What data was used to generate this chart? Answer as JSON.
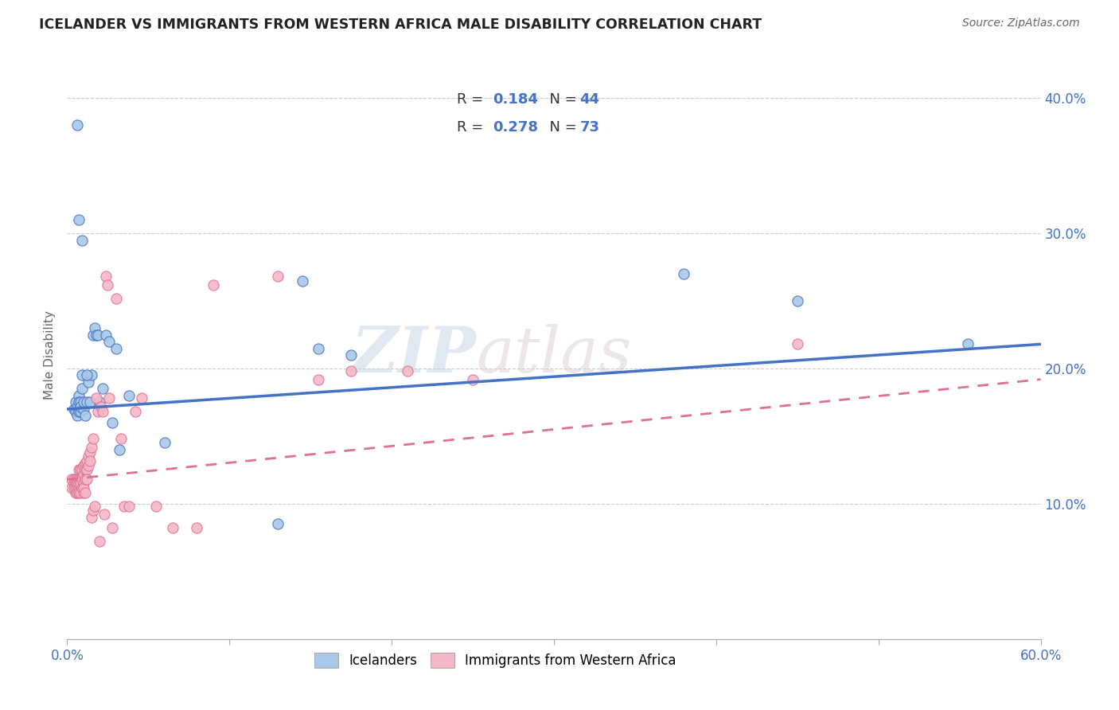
{
  "title": "ICELANDER VS IMMIGRANTS FROM WESTERN AFRICA MALE DISABILITY CORRELATION CHART",
  "source": "Source: ZipAtlas.com",
  "ylabel": "Male Disability",
  "xlim": [
    0.0,
    0.6
  ],
  "ylim": [
    0.0,
    0.42
  ],
  "legend_r1": "R = 0.184",
  "legend_n1": "N = 44",
  "legend_r2": "R = 0.278",
  "legend_n2": "N = 73",
  "color_blue": "#a8c8e8",
  "color_pink": "#f4b8c8",
  "color_blue_dark": "#4472c4",
  "color_pink_dark": "#e07090",
  "watermark_zip": "ZIP",
  "watermark_atlas": "atlas",
  "blue_line_start_y": 0.17,
  "blue_line_end_y": 0.218,
  "pink_line_start_y": 0.118,
  "pink_line_end_y": 0.192,
  "icelanders_x": [
    0.004,
    0.005,
    0.005,
    0.006,
    0.006,
    0.007,
    0.007,
    0.007,
    0.008,
    0.008,
    0.008,
    0.009,
    0.009,
    0.01,
    0.01,
    0.011,
    0.012,
    0.013,
    0.014,
    0.015,
    0.016,
    0.017,
    0.018,
    0.019,
    0.02,
    0.022,
    0.024,
    0.026,
    0.028,
    0.03,
    0.032,
    0.038,
    0.06,
    0.13,
    0.145,
    0.155,
    0.175,
    0.38,
    0.45,
    0.555,
    0.006,
    0.007,
    0.009,
    0.012
  ],
  "icelanders_y": [
    0.17,
    0.168,
    0.175,
    0.172,
    0.165,
    0.18,
    0.175,
    0.168,
    0.175,
    0.168,
    0.172,
    0.195,
    0.185,
    0.17,
    0.175,
    0.165,
    0.175,
    0.19,
    0.175,
    0.195,
    0.225,
    0.23,
    0.225,
    0.225,
    0.175,
    0.185,
    0.225,
    0.22,
    0.16,
    0.215,
    0.14,
    0.18,
    0.145,
    0.085,
    0.265,
    0.215,
    0.21,
    0.27,
    0.25,
    0.218,
    0.38,
    0.31,
    0.295,
    0.195
  ],
  "western_africa_x": [
    0.003,
    0.003,
    0.004,
    0.004,
    0.004,
    0.005,
    0.005,
    0.005,
    0.005,
    0.006,
    0.006,
    0.006,
    0.006,
    0.006,
    0.007,
    0.007,
    0.007,
    0.007,
    0.007,
    0.008,
    0.008,
    0.008,
    0.008,
    0.009,
    0.009,
    0.009,
    0.01,
    0.01,
    0.01,
    0.01,
    0.01,
    0.011,
    0.011,
    0.011,
    0.011,
    0.012,
    0.012,
    0.012,
    0.013,
    0.013,
    0.014,
    0.014,
    0.015,
    0.015,
    0.016,
    0.016,
    0.017,
    0.018,
    0.019,
    0.02,
    0.021,
    0.022,
    0.023,
    0.024,
    0.025,
    0.026,
    0.028,
    0.03,
    0.033,
    0.035,
    0.038,
    0.042,
    0.046,
    0.055,
    0.065,
    0.08,
    0.09,
    0.13,
    0.155,
    0.175,
    0.21,
    0.25,
    0.45
  ],
  "western_africa_y": [
    0.118,
    0.112,
    0.115,
    0.118,
    0.112,
    0.118,
    0.115,
    0.108,
    0.112,
    0.118,
    0.115,
    0.112,
    0.108,
    0.115,
    0.125,
    0.118,
    0.112,
    0.108,
    0.115,
    0.125,
    0.118,
    0.115,
    0.108,
    0.125,
    0.118,
    0.112,
    0.128,
    0.122,
    0.115,
    0.108,
    0.112,
    0.13,
    0.125,
    0.118,
    0.108,
    0.132,
    0.125,
    0.118,
    0.135,
    0.128,
    0.138,
    0.132,
    0.142,
    0.09,
    0.148,
    0.095,
    0.098,
    0.178,
    0.168,
    0.072,
    0.172,
    0.168,
    0.092,
    0.268,
    0.262,
    0.178,
    0.082,
    0.252,
    0.148,
    0.098,
    0.098,
    0.168,
    0.178,
    0.098,
    0.082,
    0.082,
    0.262,
    0.268,
    0.192,
    0.198,
    0.198,
    0.192,
    0.218
  ]
}
